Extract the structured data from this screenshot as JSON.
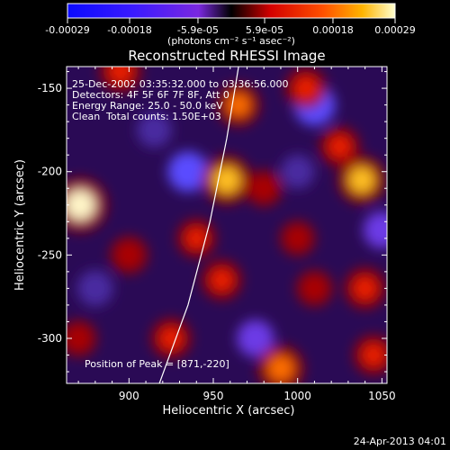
{
  "colorbar": {
    "tick_labels": [
      "-0.00029",
      "-0.00018",
      "-5.9e-05",
      "5.9e-05",
      "0.00018",
      "0.00029"
    ],
    "tick_values": [
      -0.00029,
      -0.00018,
      -5.9e-05,
      5.9e-05,
      0.00018,
      0.00029
    ],
    "range": [
      -0.00029,
      0.00029
    ],
    "unit_label": "(photons cm⁻² s⁻¹ asec⁻²)"
  },
  "chart_data": {
    "type": "heatmap",
    "title": "Reconstructed RHESSI Image",
    "xlabel": "Heliocentric X (arcsec)",
    "ylabel": "Heliocentric Y (arcsec)",
    "xlim": [
      863,
      1053
    ],
    "ylim": [
      -327,
      -137
    ],
    "xticks": [
      900,
      950,
      1000,
      1050
    ],
    "yticks": [
      -300,
      -250,
      -200,
      -150
    ],
    "limb_line": {
      "x": [
        918,
        935,
        948,
        958,
        965
      ],
      "y": [
        -327,
        -280,
        -230,
        -180,
        -137
      ]
    },
    "bright_sources": [
      {
        "x": 871,
        "y": -220,
        "level": 1.0
      },
      {
        "x": 958,
        "y": -205,
        "level": 0.8
      },
      {
        "x": 1038,
        "y": -205,
        "level": 0.75
      },
      {
        "x": 990,
        "y": -318,
        "level": 0.7
      },
      {
        "x": 895,
        "y": -140,
        "level": 0.5
      },
      {
        "x": 965,
        "y": -160,
        "level": 0.55
      },
      {
        "x": 1005,
        "y": -150,
        "level": 0.5
      },
      {
        "x": 1025,
        "y": -185,
        "level": 0.45
      },
      {
        "x": 940,
        "y": -240,
        "level": 0.4
      },
      {
        "x": 955,
        "y": -265,
        "level": 0.45
      },
      {
        "x": 1040,
        "y": -270,
        "level": 0.5
      },
      {
        "x": 1045,
        "y": -310,
        "level": 0.45
      },
      {
        "x": 925,
        "y": -300,
        "level": 0.45
      },
      {
        "x": 900,
        "y": -250,
        "level": 0.35
      },
      {
        "x": 1010,
        "y": -270,
        "level": 0.3
      },
      {
        "x": 870,
        "y": -300,
        "level": 0.3
      },
      {
        "x": 980,
        "y": -210,
        "level": 0.3
      },
      {
        "x": 1000,
        "y": -240,
        "level": 0.25
      }
    ],
    "dark_sources": [
      {
        "x": 935,
        "y": -200,
        "level": -0.7
      },
      {
        "x": 1010,
        "y": -160,
        "level": -0.75
      },
      {
        "x": 975,
        "y": -300,
        "level": -0.55
      },
      {
        "x": 880,
        "y": -270,
        "level": -0.5
      },
      {
        "x": 1050,
        "y": -235,
        "level": -0.55
      },
      {
        "x": 1000,
        "y": -200,
        "level": -0.4
      },
      {
        "x": 915,
        "y": -175,
        "level": -0.45
      }
    ]
  },
  "annotations": {
    "time_range": "25-Dec-2002 03:35:32.000 to 03:36:56.000",
    "detectors": "Detectors: 4F 5F 6F 7F 8F, Att 0",
    "energy": "Energy Range: 25.0 - 50.0 keV",
    "clean": "Clean",
    "counts": "Total counts: 1.50E+03",
    "peak": "Position of Peak = [871,-220]"
  },
  "footer": {
    "date": "24-Apr-2013 04:01"
  }
}
